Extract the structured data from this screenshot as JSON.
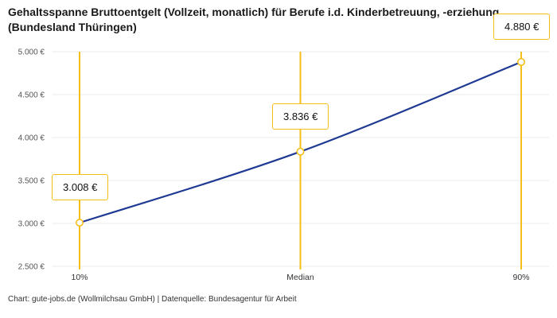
{
  "chart_data": {
    "type": "line",
    "title": "Gehaltsspanne Bruttoentgelt (Vollzeit, monatlich) für Berufe i.d. Kinderbetreuung, -erziehung (Bundesland Thüringen)",
    "categories": [
      "10%",
      "Median",
      "90%"
    ],
    "values": [
      3008,
      3836,
      4880
    ],
    "value_labels": [
      "3.008 €",
      "3.836 €",
      "4.880 €"
    ],
    "xlabel": "",
    "ylabel": "",
    "ylim": [
      2500,
      5000
    ],
    "grid": true,
    "legend": "none",
    "yticks": [
      {
        "value": 2500,
        "label": "2.500 €"
      },
      {
        "value": 3000,
        "label": "3.000 €"
      },
      {
        "value": 3500,
        "label": "3.500 €"
      },
      {
        "value": 4000,
        "label": "4.000 €"
      },
      {
        "value": 4500,
        "label": "4.500 €"
      },
      {
        "value": 5000,
        "label": "5.000 €"
      }
    ],
    "colors": {
      "line": "#1F3A93",
      "accent": "#F5BE19",
      "grid": "#EBEBEB",
      "marker_fill": "#FFFFFF"
    }
  },
  "footer": "Chart: gute-jobs.de (Wollmilchsau GmbH) | Datenquelle: Bundesagentur für Arbeit"
}
